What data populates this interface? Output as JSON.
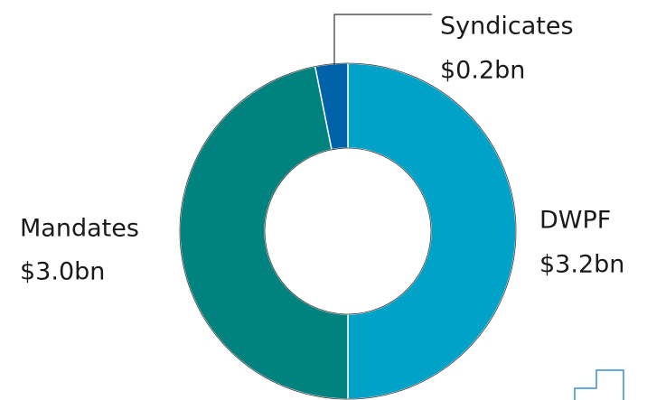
{
  "chart_data": {
    "type": "donut",
    "categories": [
      "DWPF",
      "Mandates",
      "Syndicates"
    ],
    "values": [
      3.2,
      3.0,
      0.2
    ],
    "value_labels": [
      "$3.2bn",
      "$3.0bn",
      "$0.2bn"
    ],
    "colors": [
      "#00a2c8",
      "#00827f",
      "#0062a8"
    ]
  }
}
